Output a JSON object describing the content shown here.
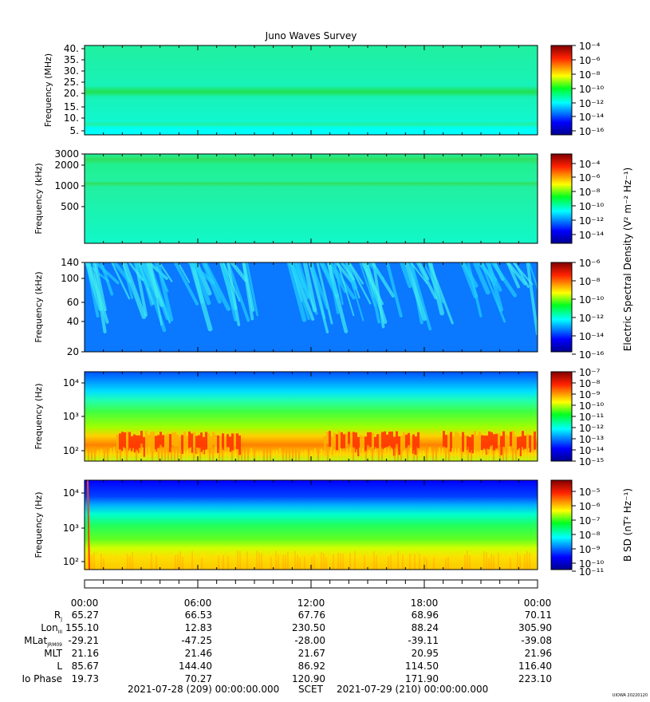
{
  "title": "Juno Waves Survey",
  "footer": {
    "start": "2021-07-28 (209) 00:00:00.000",
    "scet": "SCET",
    "end": "2021-07-29 (210) 00:00:00.000",
    "credit": "UIOWA 20220120"
  },
  "shared_colorbar_label": "Electric Spectral Density (V² m⁻² Hz⁻¹)",
  "panels": [
    {
      "ylabel": "Frequency (MHz)",
      "yticks": [
        "40.",
        "35.",
        "30.",
        "25.",
        "20.",
        "15.",
        "10.",
        "5."
      ],
      "colorbar_ticks": [
        "10⁻⁴",
        "10⁻⁶",
        "10⁻⁸",
        "10⁻¹⁰",
        "10⁻¹²",
        "10⁻¹⁴",
        "10⁻¹⁶"
      ],
      "colorbar_label": ""
    },
    {
      "ylabel": "Frequency (kHz)",
      "yticks": [
        "3000",
        "2000",
        "1000",
        "500"
      ],
      "colorbar_ticks": [
        "10⁻⁴",
        "10⁻⁶",
        "10⁻⁸",
        "10⁻¹⁰",
        "10⁻¹²",
        "10⁻¹⁴"
      ],
      "colorbar_label": ""
    },
    {
      "ylabel": "Frequency (kHz)",
      "yticks": [
        "140",
        "100",
        "60",
        "40",
        "20"
      ],
      "colorbar_ticks": [
        "10⁻⁶",
        "10⁻⁸",
        "10⁻¹⁰",
        "10⁻¹²",
        "10⁻¹⁴",
        "10⁻¹⁶"
      ],
      "colorbar_label": ""
    },
    {
      "ylabel": "Frequency (Hz)",
      "yticks": [
        "10⁴",
        "10³",
        "10²"
      ],
      "colorbar_ticks": [
        "10⁻⁷",
        "10⁻⁸",
        "10⁻⁹",
        "10⁻¹⁰",
        "10⁻¹¹",
        "10⁻¹²",
        "10⁻¹³",
        "10⁻¹⁴",
        "10⁻¹⁵"
      ],
      "colorbar_label": ""
    },
    {
      "ylabel": "Frequency (Hz)",
      "yticks": [
        "10⁴",
        "10³",
        "10²"
      ],
      "colorbar_ticks": [
        "10⁻⁵",
        "10⁻⁶",
        "10⁻⁷",
        "10⁻⁸",
        "10⁻⁹",
        "10⁻¹⁰",
        "10⁻¹¹"
      ],
      "colorbar_label": "B SD (nT² Hz⁻¹)"
    }
  ],
  "time_labels": [
    "00:00",
    "06:00",
    "12:00",
    "18:00",
    "00:00"
  ],
  "ephemeris": [
    {
      "label": "Rj",
      "values": [
        "65.27",
        "66.53",
        "67.76",
        "68.96",
        "70.11"
      ]
    },
    {
      "label": "LonIII",
      "values": [
        "155.10",
        "12.83",
        "230.50",
        "88.24",
        "305.90"
      ]
    },
    {
      "label": "MLatJRM09",
      "values": [
        "-29.21",
        "-47.25",
        "-28.00",
        "-39.11",
        "-39.08"
      ]
    },
    {
      "label": "MLT",
      "values": [
        "21.16",
        "21.46",
        "21.67",
        "20.95",
        "21.96"
      ]
    },
    {
      "label": "L",
      "values": [
        "85.67",
        "144.40",
        "86.92",
        "114.50",
        "116.40"
      ]
    },
    {
      "label": "Io Phase",
      "values": [
        "19.73",
        "70.27",
        "120.90",
        "171.90",
        "223.10"
      ]
    }
  ],
  "chart_data": [
    {
      "type": "heatmap",
      "ylabel": "Frequency (MHz)",
      "ylim": [
        3.5,
        41
      ],
      "scale": "linear",
      "xlim": [
        "2021-07-28 00:00",
        "2021-07-29 00:00"
      ],
      "colorbar_range": [
        1e-17,
        0.0001
      ],
      "features": "uniform background ~1e-13 with a persistent band near 21 MHz (~1e-11)"
    },
    {
      "type": "heatmap",
      "ylabel": "Frequency (kHz)",
      "ylim": [
        140,
        3000
      ],
      "scale": "log",
      "xlim": [
        "2021-07-28 00:00",
        "2021-07-29 00:00"
      ],
      "colorbar_range": [
        1e-15,
        0.0001
      ],
      "features": "bands near 2500 kHz and 1100 kHz (~1e-11), background ~1e-13"
    },
    {
      "type": "heatmap",
      "ylabel": "Frequency (kHz)",
      "ylim": [
        20,
        140
      ],
      "scale": "log",
      "xlim": [
        "2021-07-28 00:00",
        "2021-07-29 00:00"
      ],
      "colorbar_range": [
        1e-17,
        1e-06
      ],
      "features": "background ~1e-14 with drifting bursts up to ~1e-12"
    },
    {
      "type": "heatmap",
      "ylabel": "Frequency (Hz)",
      "ylim": [
        50,
        20000
      ],
      "scale": "log",
      "xlim": [
        "2021-07-28 00:00",
        "2021-07-29 00:00"
      ],
      "colorbar_range": [
        1e-15,
        1e-07
      ],
      "features": "intense emission ~1e-8 near 200-400 Hz, decreasing to ~1e-14 above 4 kHz"
    },
    {
      "type": "heatmap",
      "ylabel": "Frequency (Hz)",
      "ylim": [
        50,
        20000
      ],
      "scale": "log",
      "xlim": [
        "2021-07-28 00:00",
        "2021-07-29 00:00"
      ],
      "colorbar_range": [
        1e-11,
        0.0001
      ],
      "features": "magnetic spectral density ~1e-6 near 100 Hz falling to ~1e-11 above 10 kHz"
    }
  ]
}
